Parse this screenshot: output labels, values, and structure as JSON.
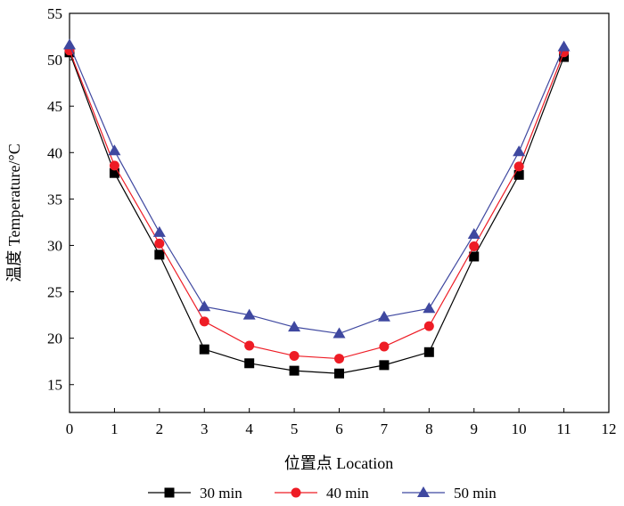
{
  "chart_data": {
    "type": "line",
    "title": "",
    "xlabel": "位置点 Location",
    "ylabel": "温度 Temperature/°C",
    "xlim": [
      0,
      12
    ],
    "ylim": [
      12,
      55
    ],
    "x_ticks": [
      0,
      1,
      2,
      3,
      4,
      5,
      6,
      7,
      8,
      9,
      10,
      11,
      12
    ],
    "y_ticks": [
      15,
      20,
      25,
      30,
      35,
      40,
      45,
      50,
      55
    ],
    "grid": false,
    "legend_position": "bottom",
    "x": [
      0,
      1,
      2,
      3,
      4,
      5,
      6,
      7,
      8,
      9,
      10,
      11
    ],
    "series": [
      {
        "name": "30 min",
        "marker": "square",
        "color": "#000000",
        "values": [
          50.8,
          37.8,
          29.0,
          18.8,
          17.3,
          16.5,
          16.2,
          17.1,
          18.5,
          28.8,
          37.6,
          50.3
        ]
      },
      {
        "name": "40 min",
        "marker": "circle",
        "color": "#ee1c25",
        "values": [
          51.0,
          38.6,
          30.2,
          21.8,
          19.2,
          18.1,
          17.8,
          19.1,
          21.3,
          29.9,
          38.5,
          50.8
        ]
      },
      {
        "name": "50 min",
        "marker": "triangle",
        "color": "#3f48a0",
        "values": [
          51.6,
          40.2,
          31.4,
          23.4,
          22.5,
          21.2,
          20.5,
          22.3,
          23.2,
          31.2,
          40.1,
          51.4
        ]
      }
    ]
  }
}
